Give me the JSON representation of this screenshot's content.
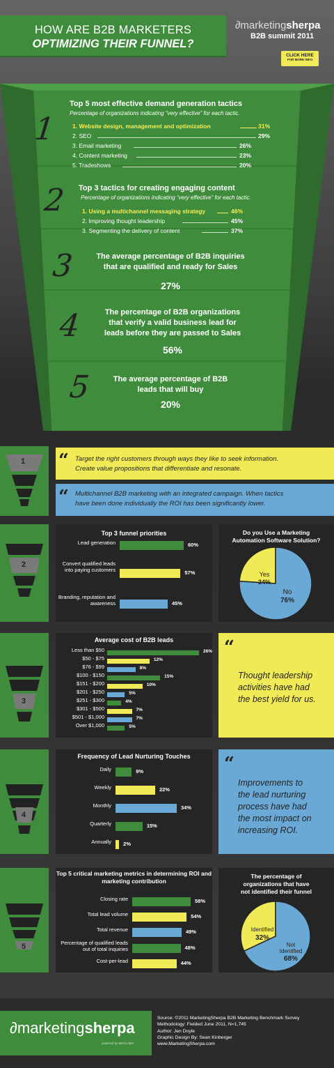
{
  "header": {
    "title_line1": "HOW ARE B2B MARKETERS",
    "title_line2": "OPTIMIZING THEIR FUNNEL?",
    "brand_a": "marketing",
    "brand_b": "sherpa",
    "brand_event": "B2B summit 2011",
    "click_line1": "CLICK HERE",
    "click_line2": "FOR MORE INFO"
  },
  "colors": {
    "green": "#3f8c3c",
    "yellow": "#f1ea57",
    "blue": "#6aa9d6",
    "dark": "#252525"
  },
  "funnel": {
    "s1": {
      "num": "1",
      "title": "Top 5 most effective demand generation tactics",
      "subtitle": "Percentage of organizations indicating “very effective” for each tactic.",
      "items": [
        {
          "label": "1. Website design, management and optimization",
          "value": "31%"
        },
        {
          "label": "2. SEO",
          "value": "29%"
        },
        {
          "label": "3. Email marketing",
          "value": "26%"
        },
        {
          "label": "4. Content marketing",
          "value": "23%"
        },
        {
          "label": "5. Tradeshows",
          "value": "20%"
        }
      ]
    },
    "s2": {
      "num": "2",
      "title": "Top 3 tactics for creating engaging content",
      "subtitle": "Percentage of organizations indicating “very effective” for each tactic.",
      "items": [
        {
          "label": "1. Using a multichannel messaging strategy",
          "value": "46%"
        },
        {
          "label": "2. Improving thought leadership",
          "value": "45%"
        },
        {
          "label": "3. Segmenting the delivery of content",
          "value": "37%"
        }
      ]
    },
    "s3": {
      "num": "3",
      "line1": "The average percentage of B2B inquiries",
      "line2": "that are qualified and ready for Sales",
      "value": "27%"
    },
    "s4": {
      "num": "4",
      "line1": "The percentage of B2B organizations",
      "line2": "that verify a valid business lead for",
      "line3": "leads before they are passed to Sales",
      "value": "56%"
    },
    "s5": {
      "num": "5",
      "line1": "The average percentage of B2B",
      "line2": "leads that will buy",
      "value": "20%"
    }
  },
  "sec1": {
    "num": "1",
    "quote1_l1": "Target the right customers through ways they like to seek information.",
    "quote1_l2": "Create value propositions that differentiate and resonate.",
    "quote2_l1": "Multichannel B2B marketing with an integrated campaign. When tactics",
    "quote2_l2": "have been done individually the ROI has been significantly lower."
  },
  "sec2": {
    "num": "2",
    "pie_title_l1": "Do you Use a Marketing",
    "pie_title_l2": "Automation Software Solution?",
    "pie_yes": "Yes",
    "pie_yes_v": "24%",
    "pie_no": "No",
    "pie_no_v": "76%"
  },
  "sec3": {
    "num": "3",
    "quote_l1": "Thought leadership",
    "quote_l2": "activities have had",
    "quote_l3": "the best yield for us."
  },
  "sec4": {
    "num": "4",
    "quote_l1": "Improvements to",
    "quote_l2": "the lead nurturing",
    "quote_l3": "process have had",
    "quote_l4": "the most impact on",
    "quote_l5": "increasing ROI."
  },
  "sec5": {
    "num": "5",
    "pie_title_l1": "The percentage of",
    "pie_title_l2": "organizations that have",
    "pie_title_l3": "not identified their funnel",
    "pie_a": "Identified",
    "pie_a_v": "32%",
    "pie_b_l1": "Not",
    "pie_b_l2": "Identified",
    "pie_b_v": "68%"
  },
  "footer": {
    "brand_a": "marketing",
    "brand_b": "sherpa",
    "powered": "powered by MECLABS",
    "source": "Source: ©2011 MarketingSherpa B2B Marketing Benchmark Survey",
    "method": "Methodology: Fielded June 2011, N=1,745",
    "author": "Author: Jen Doyle",
    "design": "Graphic Design By: Sean Kinberger",
    "url": "www.MarketingSherpa.com"
  },
  "chart_data": [
    {
      "type": "bar",
      "title": "Top 3 funnel priorities",
      "categories": [
        "Lead generation",
        "Convert qualified leads into paying customers",
        "Branding, reputation and awareness"
      ],
      "values": [
        60,
        57,
        45
      ],
      "value_labels": [
        "60%",
        "57%",
        "45%"
      ],
      "colors": [
        "#3f8c3c",
        "#f1ea57",
        "#6aa9d6"
      ],
      "xlim": [
        0,
        60
      ]
    },
    {
      "type": "pie",
      "title": "Do you Use a Marketing Automation Software Solution?",
      "categories": [
        "Yes",
        "No"
      ],
      "values": [
        24,
        76
      ]
    },
    {
      "type": "bar",
      "title": "Average cost of B2B leads",
      "categories": [
        "Less than $50",
        "$50 - $75",
        "$76 - $99",
        "$100 - $150",
        "$151 - $200",
        "$201 - $250",
        "$251 - $300",
        "$301 - $500",
        "$501 - $1,000",
        "Over $1,000"
      ],
      "values": [
        26,
        12,
        8,
        15,
        10,
        5,
        4,
        7,
        7,
        5
      ],
      "value_labels": [
        "26%",
        "12%",
        "8%",
        "15%",
        "10%",
        "5%",
        "4%",
        "7%",
        "7%",
        "5%"
      ],
      "colors": [
        "#3f8c3c",
        "#f1ea57",
        "#6aa9d6",
        "#3f8c3c",
        "#f1ea57",
        "#6aa9d6",
        "#3f8c3c",
        "#f1ea57",
        "#6aa9d6",
        "#3f8c3c"
      ],
      "xlim": [
        0,
        26
      ]
    },
    {
      "type": "bar",
      "title": "Frequency of Lead Nurturing Touches",
      "categories": [
        "Daily",
        "Weekly",
        "Monthly",
        "Quarterly",
        "Annually"
      ],
      "values": [
        9,
        22,
        34,
        15,
        2
      ],
      "value_labels": [
        "9%",
        "22%",
        "34%",
        "15%",
        "2%"
      ],
      "colors": [
        "#3f8c3c",
        "#f1ea57",
        "#6aa9d6",
        "#3f8c3c",
        "#f1ea57"
      ],
      "xlim": [
        0,
        34
      ]
    },
    {
      "type": "bar",
      "title": "Top 5 critical marketing metrics in determining ROI and marketing contribution",
      "categories": [
        "Closing rate",
        "Total lead volume",
        "Total revenue",
        "Percentage of qualified leads out of total inquiries",
        "Cost-per-lead"
      ],
      "values": [
        58,
        54,
        49,
        48,
        44
      ],
      "value_labels": [
        "58%",
        "54%",
        "49%",
        "48%",
        "44%"
      ],
      "colors": [
        "#3f8c3c",
        "#f1ea57",
        "#6aa9d6",
        "#3f8c3c",
        "#f1ea57"
      ],
      "xlim": [
        0,
        58
      ]
    },
    {
      "type": "pie",
      "title": "The percentage of organizations that have not identified their funnel",
      "categories": [
        "Identified",
        "Not Identified"
      ],
      "values": [
        32,
        68
      ]
    }
  ]
}
